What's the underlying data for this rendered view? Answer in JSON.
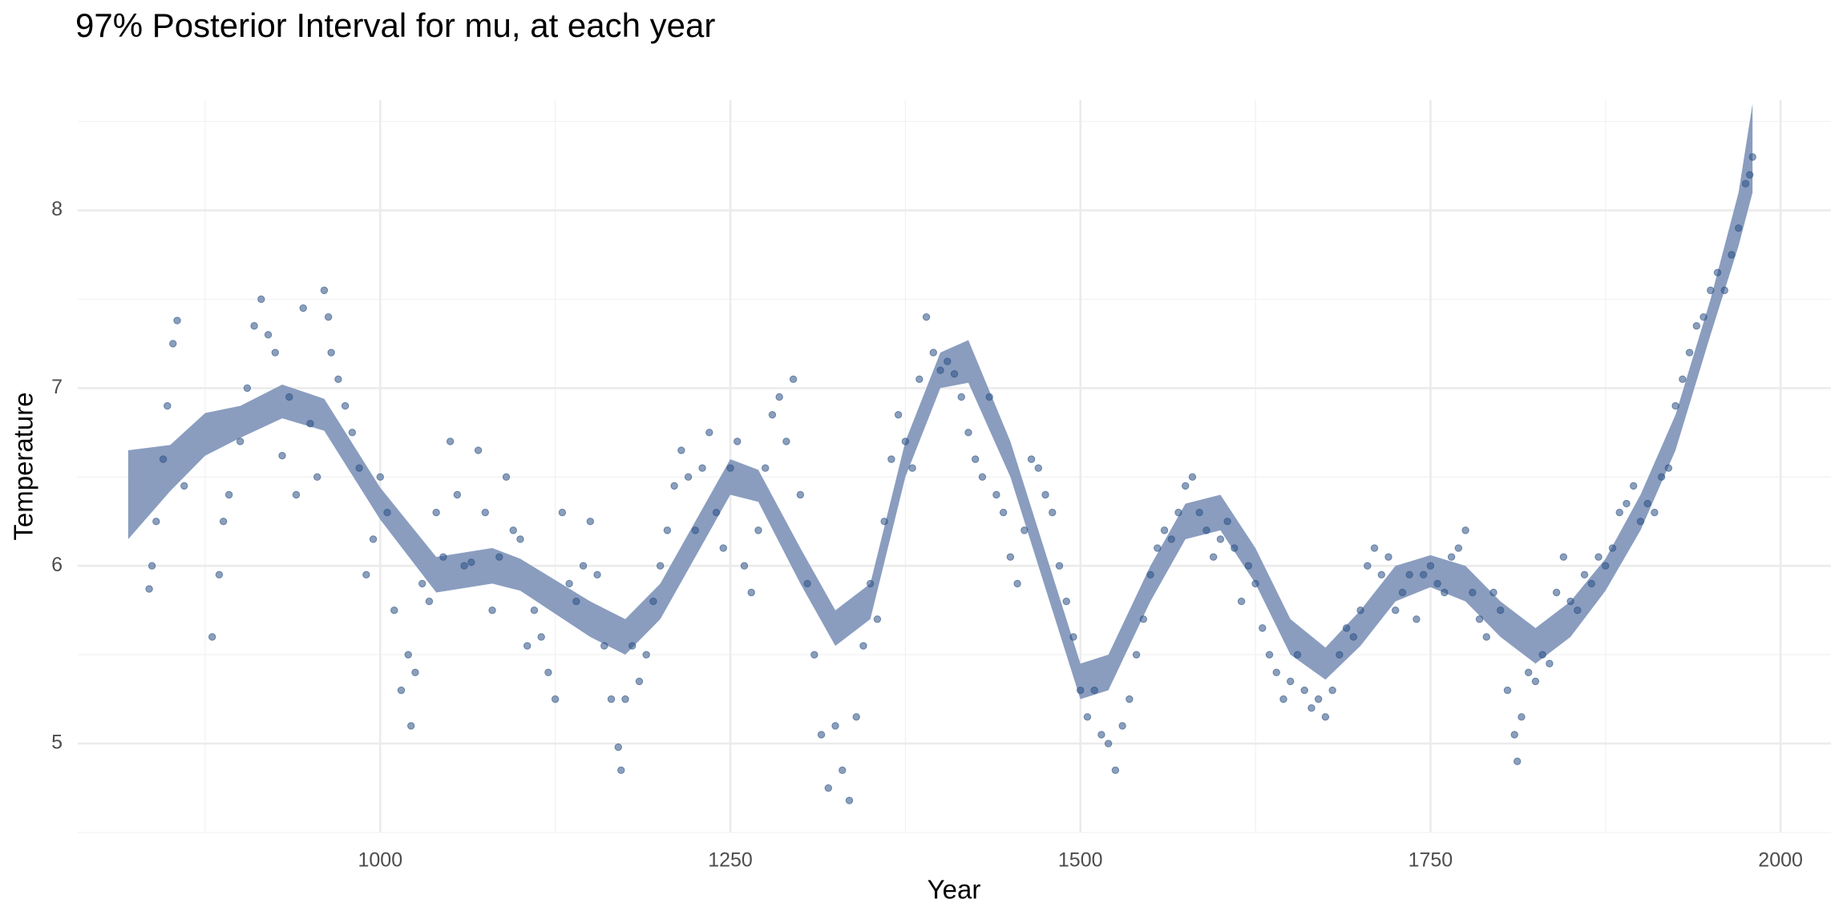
{
  "chart_data": {
    "type": "scatter",
    "title": "97% Posterior Interval for mu, at each year",
    "x_label": "Year",
    "y_label": "Temperature",
    "color": "#2c5185",
    "x": [
      835,
      837,
      840,
      845,
      848,
      852,
      855,
      860,
      880,
      885,
      888,
      892,
      900,
      905,
      910,
      915,
      920,
      925,
      930,
      935,
      940,
      945,
      950,
      955,
      960,
      963,
      965,
      970,
      975,
      980,
      985,
      990,
      995,
      1000,
      1005,
      1010,
      1015,
      1020,
      1022,
      1025,
      1030,
      1035,
      1040,
      1045,
      1050,
      1055,
      1060,
      1065,
      1070,
      1075,
      1080,
      1085,
      1090,
      1095,
      1100,
      1105,
      1110,
      1115,
      1120,
      1125,
      1130,
      1135,
      1140,
      1145,
      1150,
      1155,
      1160,
      1165,
      1170,
      1172,
      1175,
      1180,
      1185,
      1190,
      1195,
      1200,
      1205,
      1210,
      1215,
      1220,
      1225,
      1230,
      1235,
      1240,
      1245,
      1250,
      1255,
      1260,
      1265,
      1270,
      1275,
      1280,
      1285,
      1290,
      1295,
      1300,
      1305,
      1310,
      1315,
      1320,
      1325,
      1330,
      1335,
      1340,
      1345,
      1350,
      1355,
      1360,
      1365,
      1370,
      1375,
      1380,
      1385,
      1390,
      1395,
      1400,
      1405,
      1410,
      1415,
      1420,
      1425,
      1430,
      1435,
      1440,
      1445,
      1450,
      1455,
      1460,
      1465,
      1470,
      1475,
      1480,
      1485,
      1490,
      1495,
      1500,
      1505,
      1510,
      1515,
      1520,
      1525,
      1530,
      1535,
      1540,
      1545,
      1550,
      1555,
      1560,
      1565,
      1570,
      1575,
      1580,
      1585,
      1590,
      1595,
      1600,
      1605,
      1610,
      1615,
      1620,
      1625,
      1630,
      1635,
      1640,
      1645,
      1650,
      1655,
      1660,
      1665,
      1670,
      1675,
      1680,
      1685,
      1690,
      1695,
      1700,
      1705,
      1710,
      1715,
      1720,
      1725,
      1730,
      1735,
      1740,
      1745,
      1750,
      1755,
      1760,
      1765,
      1770,
      1775,
      1780,
      1785,
      1790,
      1795,
      1800,
      1805,
      1810,
      1812,
      1815,
      1820,
      1825,
      1830,
      1835,
      1840,
      1845,
      1850,
      1855,
      1860,
      1865,
      1870,
      1875,
      1880,
      1885,
      1890,
      1895,
      1900,
      1905,
      1910,
      1915,
      1920,
      1925,
      1930,
      1935,
      1940,
      1945,
      1950,
      1955,
      1960,
      1965,
      1970,
      1975,
      1978,
      1980
    ],
    "values": [
      5.87,
      6.0,
      6.25,
      6.6,
      6.9,
      7.25,
      7.38,
      6.45,
      5.6,
      5.95,
      6.25,
      6.4,
      6.7,
      7.0,
      7.35,
      7.5,
      7.3,
      7.2,
      6.62,
      6.95,
      6.4,
      7.45,
      6.8,
      6.5,
      7.55,
      7.4,
      7.2,
      7.05,
      6.9,
      6.75,
      6.55,
      5.95,
      6.15,
      6.5,
      6.3,
      5.75,
      5.3,
      5.5,
      5.1,
      5.4,
      5.9,
      5.8,
      6.3,
      6.05,
      6.7,
      6.4,
      6.0,
      6.02,
      6.65,
      6.3,
      5.75,
      6.05,
      6.5,
      6.2,
      6.15,
      5.55,
      5.75,
      5.6,
      5.4,
      5.25,
      6.3,
      5.9,
      5.8,
      6.0,
      6.25,
      5.95,
      5.55,
      5.25,
      4.98,
      4.85,
      5.25,
      5.55,
      5.35,
      5.5,
      5.8,
      6.0,
      6.2,
      6.45,
      6.65,
      6.5,
      6.2,
      6.55,
      6.75,
      6.3,
      6.1,
      6.55,
      6.7,
      6.0,
      5.85,
      6.2,
      6.55,
      6.85,
      6.95,
      6.7,
      7.05,
      6.4,
      5.9,
      5.5,
      5.05,
      4.75,
      5.1,
      4.85,
      4.68,
      5.15,
      5.55,
      5.9,
      5.7,
      6.25,
      6.6,
      6.85,
      6.7,
      6.55,
      7.05,
      7.4,
      7.2,
      7.1,
      7.15,
      7.08,
      6.95,
      6.75,
      6.6,
      6.5,
      6.95,
      6.4,
      6.3,
      6.05,
      5.9,
      6.2,
      6.6,
      6.55,
      6.4,
      6.3,
      6.0,
      5.8,
      5.6,
      5.3,
      5.15,
      5.3,
      5.05,
      5.0,
      4.85,
      5.1,
      5.25,
      5.5,
      5.7,
      5.95,
      6.1,
      6.2,
      6.15,
      6.3,
      6.45,
      6.5,
      6.3,
      6.2,
      6.05,
      6.15,
      6.25,
      6.1,
      5.8,
      6.0,
      5.9,
      5.65,
      5.5,
      5.4,
      5.25,
      5.35,
      5.5,
      5.3,
      5.2,
      5.25,
      5.15,
      5.3,
      5.5,
      5.65,
      5.6,
      5.75,
      6.0,
      6.1,
      5.95,
      6.05,
      5.75,
      5.85,
      5.95,
      5.7,
      5.95,
      6.0,
      5.9,
      5.85,
      6.05,
      6.1,
      6.2,
      5.85,
      5.7,
      5.6,
      5.85,
      5.75,
      5.3,
      5.05,
      4.9,
      5.15,
      5.4,
      5.35,
      5.5,
      5.45,
      5.85,
      6.05,
      5.8,
      5.75,
      5.95,
      5.9,
      6.05,
      6.0,
      6.1,
      6.3,
      6.35,
      6.45,
      6.25,
      6.35,
      6.3,
      6.5,
      6.55,
      6.9,
      7.05,
      7.2,
      7.35,
      7.4,
      7.55,
      7.65,
      7.55,
      7.75,
      7.9,
      8.15,
      8.2,
      8.3
    ],
    "interval": {
      "color": "#8a9dbf",
      "x": [
        820,
        850,
        875,
        900,
        930,
        960,
        1000,
        1040,
        1080,
        1100,
        1150,
        1175,
        1200,
        1250,
        1270,
        1300,
        1325,
        1350,
        1375,
        1400,
        1420,
        1450,
        1480,
        1500,
        1520,
        1550,
        1575,
        1600,
        1625,
        1650,
        1675,
        1700,
        1725,
        1750,
        1775,
        1800,
        1825,
        1850,
        1875,
        1900,
        1925,
        1950,
        1970,
        1980
      ],
      "lower": [
        6.15,
        6.42,
        6.62,
        6.72,
        6.83,
        6.76,
        6.26,
        5.85,
        5.9,
        5.86,
        5.6,
        5.5,
        5.7,
        6.4,
        6.36,
        5.9,
        5.55,
        5.7,
        6.5,
        7.0,
        7.03,
        6.5,
        5.75,
        5.25,
        5.3,
        5.8,
        6.15,
        6.2,
        5.9,
        5.5,
        5.36,
        5.55,
        5.8,
        5.88,
        5.8,
        5.6,
        5.45,
        5.6,
        5.86,
        6.2,
        6.65,
        7.3,
        7.8,
        8.1
      ],
      "upper": [
        6.65,
        6.68,
        6.86,
        6.9,
        7.02,
        6.94,
        6.44,
        6.05,
        6.1,
        6.04,
        5.8,
        5.7,
        5.9,
        6.6,
        6.54,
        6.1,
        5.75,
        5.9,
        6.7,
        7.2,
        7.27,
        6.7,
        5.95,
        5.45,
        5.5,
        6.0,
        6.35,
        6.4,
        6.1,
        5.7,
        5.54,
        5.75,
        6.0,
        6.06,
        6.0,
        5.8,
        5.65,
        5.8,
        6.04,
        6.4,
        6.85,
        7.5,
        8.1,
        8.6
      ]
    },
    "xlim": [
      784,
      2036
    ],
    "ylim": [
      4.5,
      8.62
    ],
    "xticks": [
      1000,
      1250,
      1500,
      1750,
      2000
    ],
    "yticks": [
      5,
      6,
      7,
      8
    ],
    "x_minor_grid": [
      875,
      1125,
      1375,
      1625,
      1875
    ],
    "y_minor_grid": [
      4.5,
      5.5,
      6.5,
      7.5,
      8.5
    ],
    "grid": true
  }
}
